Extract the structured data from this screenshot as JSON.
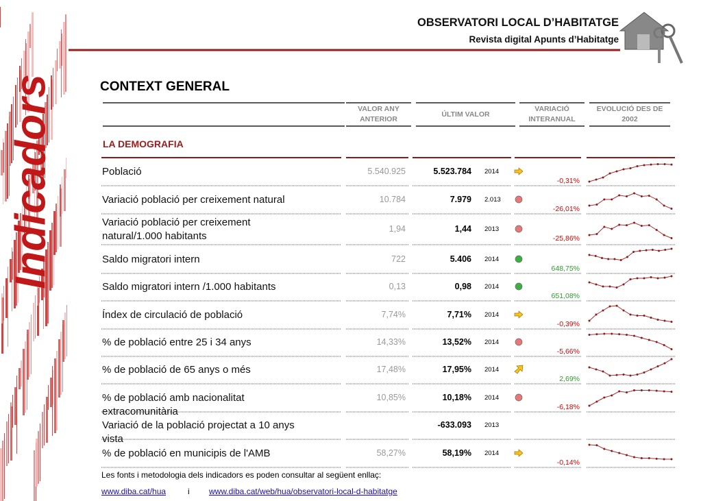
{
  "header": {
    "title": "OBSERVATORI LOCAL D’HABITATGE",
    "subtitle": "Revista digital Apunts d’Habitatge"
  },
  "side_label": "Indicadors",
  "section_title": "CONTEXT GENERAL",
  "table": {
    "columns": [
      "VALOR ANY ANTERIOR",
      "ÚLTIM VALOR",
      "VARIACIÓ INTERANUAL",
      "EVOLUCIÓ DES DE 2002"
    ],
    "group": "LA DEMOGRAFIA",
    "rows": [
      {
        "label": "Població",
        "previous": "5.540.925",
        "last": "5.523.784",
        "year": "2014",
        "indicator": "arrow-right",
        "variation": "-0,31%",
        "variation_color": "#e00000",
        "trend": [
          0,
          1,
          2,
          4,
          5,
          6,
          6.5,
          7.5,
          8,
          8.3,
          8.5,
          8.5,
          8.3
        ]
      },
      {
        "label": "Variació població per creixement natural",
        "previous": "10.784",
        "last": "7.979",
        "year": "2.013",
        "indicator": "red",
        "variation": "-26,01%",
        "variation_color": "#e00000",
        "trend": [
          2,
          2.5,
          5,
          5,
          7,
          6.5,
          8,
          6.5,
          6.8,
          5,
          2,
          0.5
        ]
      },
      {
        "label": "Variació població per creixement natural/1.000 habitants",
        "previous": "1,94",
        "last": "1,44",
        "year": "2013",
        "indicator": "red",
        "variation": "-25,86%",
        "variation_color": "#e00000",
        "trend": [
          2,
          2.5,
          6,
          5,
          7,
          6.8,
          8,
          6.5,
          6.8,
          4.5,
          2,
          0.5
        ]
      },
      {
        "label": "Saldo migratori intern",
        "previous": "722",
        "last": "5.406",
        "year": "2014",
        "indicator": "green",
        "variation": "648,75%",
        "variation_color": "#2a9d2a",
        "trend": [
          7,
          6.5,
          5.5,
          5,
          5,
          4.5,
          6,
          8.5,
          9,
          9.3,
          9.5,
          9,
          9.5,
          10
        ]
      },
      {
        "label": "Saldo migratori intern /1.000 habitants",
        "previous": "0,13",
        "last": "0,98",
        "year": "2014",
        "indicator": "green",
        "variation": "651,08%",
        "variation_color": "#2a9d2a",
        "trend": [
          7,
          6,
          5,
          5,
          4.5,
          6,
          8.5,
          9,
          9,
          9.5,
          9,
          9.3,
          10
        ]
      },
      {
        "label": "Índex de circulació de població",
        "previous": "7,74%",
        "last": "7,71%",
        "year": "2014",
        "indicator": "arrow-right",
        "variation": "-0,39%",
        "variation_color": "#e00000",
        "trend": [
          2,
          5,
          7,
          9,
          9.3,
          7,
          5,
          4.5,
          4.5,
          3.5,
          2.5,
          2,
          1.5
        ]
      },
      {
        "label": "% de població entre 25 i 34 anys",
        "previous": "14,33%",
        "last": "13,52%",
        "year": "2014",
        "indicator": "red",
        "variation": "-5,66%",
        "variation_color": "#e00000",
        "trend": [
          8.5,
          8.8,
          9,
          9,
          8.8,
          8.5,
          8,
          7,
          6,
          5,
          3.5,
          1.5
        ]
      },
      {
        "label": "% de població de 65 anys o més",
        "previous": "17,48%",
        "last": "17,95%",
        "year": "2014",
        "indicator": "arrow-up-right",
        "variation": "2,69%",
        "variation_color": "#2a9d2a",
        "trend": [
          6,
          5,
          4,
          2,
          2.3,
          2.5,
          2,
          2.5,
          3.5,
          5,
          6.5,
          8,
          10
        ]
      },
      {
        "label": "% de població amb nacionalitat extracomunitària",
        "previous": "10,85%",
        "last": "10,18%",
        "year": "2014",
        "indicator": "red",
        "variation": "-6,18%",
        "variation_color": "#e00000",
        "trend": [
          1,
          3,
          5,
          6,
          8,
          7.5,
          8.5,
          8.5,
          8.5,
          8.3,
          8,
          7.8
        ]
      },
      {
        "label": "Variació de la població projectat a 10 anys vista",
        "previous": null,
        "last": "-633.093",
        "year": "2013",
        "indicator": null,
        "variation": null,
        "variation_color": null,
        "trend": null
      },
      {
        "label": "% de població en municipis de l'AMB",
        "previous": "58,27%",
        "last": "58,19%",
        "year": "2014",
        "indicator": "arrow-right",
        "variation": "-0,14%",
        "variation_color": "#e00000",
        "trend": [
          9,
          8.8,
          7,
          6,
          5,
          4,
          3,
          2.5,
          2.5,
          2.2,
          2,
          2
        ]
      }
    ]
  },
  "footer": {
    "note": "Les fonts i metodologia dels indicadors es poden consultar al següent enllaç:",
    "link1": "www.diba.cat/hua",
    "joiner": "i",
    "link2": "www.diba.cat/web/hua/observatori-local-d-habitatge"
  }
}
